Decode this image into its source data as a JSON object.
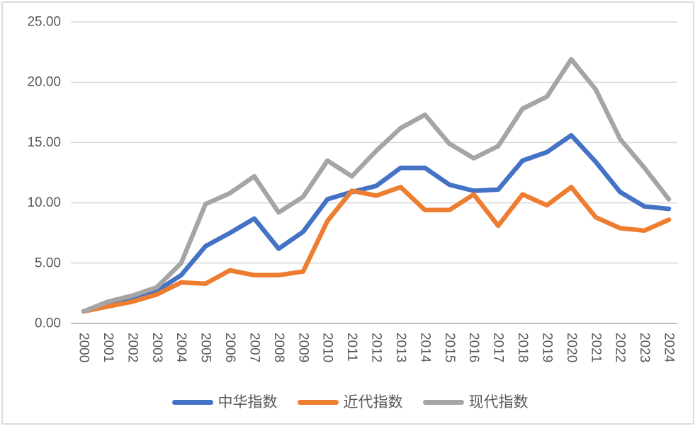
{
  "chart_data": {
    "type": "line",
    "title": "",
    "xlabel": "",
    "ylabel": "",
    "x_categories": [
      "2000",
      "2001",
      "2002",
      "2003",
      "2004",
      "2005",
      "2006",
      "2007",
      "2008",
      "2009",
      "2010",
      "2011",
      "2012",
      "2013",
      "2014",
      "2015",
      "2016",
      "2017",
      "2018",
      "2019",
      "2020",
      "2021",
      "2022",
      "2023",
      "2024"
    ],
    "series": [
      {
        "name": "中华指数",
        "slug": "zhonghua-zhishu",
        "color": "#4472C4",
        "values": [
          1.0,
          1.5,
          2.0,
          2.7,
          4.0,
          6.4,
          7.5,
          8.7,
          6.2,
          7.6,
          10.3,
          10.9,
          11.4,
          12.9,
          12.9,
          11.5,
          11.0,
          11.1,
          13.5,
          14.2,
          15.6,
          13.4,
          10.9,
          9.7,
          9.5
        ]
      },
      {
        "name": "近代指数",
        "slug": "jindai-zhishu",
        "color": "#ED7D31",
        "values": [
          1.0,
          1.4,
          1.8,
          2.4,
          3.4,
          3.3,
          4.4,
          4.0,
          4.0,
          4.3,
          8.5,
          11.0,
          10.6,
          11.3,
          9.4,
          9.4,
          10.7,
          8.1,
          10.7,
          9.8,
          11.3,
          8.8,
          7.9,
          7.7,
          8.6
        ]
      },
      {
        "name": "现代指数",
        "slug": "xiandai-zhishu",
        "color": "#A5A5A5",
        "values": [
          1.0,
          1.8,
          2.3,
          3.0,
          5.0,
          9.9,
          10.8,
          12.2,
          9.2,
          10.5,
          13.5,
          12.2,
          14.3,
          16.2,
          17.3,
          14.9,
          13.7,
          14.7,
          17.8,
          18.8,
          21.9,
          19.4,
          15.3,
          12.9,
          10.3
        ]
      }
    ],
    "y_axis": {
      "min": 0,
      "max": 25,
      "step": 5,
      "tick_labels": [
        "0.00",
        "5.00",
        "10.00",
        "15.00",
        "20.00",
        "25.00"
      ]
    },
    "legend": {
      "position": "bottom",
      "items": [
        "中华指数",
        "近代指数",
        "现代指数"
      ]
    },
    "grid": true
  },
  "style": {
    "background_color": "#FFFFFF",
    "frame_border_color": "#DCDCDC",
    "gridline_color": "#D9D9D9",
    "axis_line_color": "#C0C0C0",
    "axis_text_color": "#595959",
    "series_colors": {
      "中华指数": "#4472C4",
      "近代指数": "#ED7D31",
      "现代指数": "#A5A5A5"
    }
  }
}
